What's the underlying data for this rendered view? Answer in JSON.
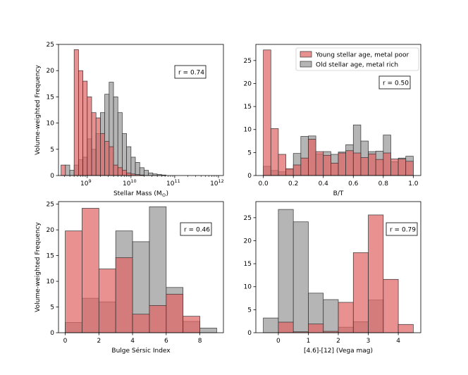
{
  "colors": {
    "young": "#e06666",
    "old": "#888888",
    "edge": "#333333",
    "overlap": "#a06a6a"
  },
  "legend": {
    "young_label": "Young stellar age, metal poor",
    "old_label": "Old stellar age, metal rich"
  },
  "shared_ylabel": "Volume-weighted Frequency",
  "chart_data": [
    {
      "type": "bar",
      "title": "",
      "xlabel": "Stellar Mass (M⊙)",
      "ylabel": "Volume-weighted Frequency",
      "xscale": "log",
      "xlim": [
        220000000.0,
        1300000000000.0
      ],
      "ylim": [
        0,
        25
      ],
      "yticks": [
        0,
        5,
        10,
        15,
        20,
        25
      ],
      "xticks": [
        {
          "v": 1000000000.0,
          "label": "10",
          "exp": "9"
        },
        {
          "v": 10000000000.0,
          "label": "10",
          "exp": "10"
        },
        {
          "v": 100000000000.0,
          "label": "10",
          "exp": "11"
        },
        {
          "v": 1000000000000.0,
          "label": "10",
          "exp": "12"
        }
      ],
      "bin_edges_log10": [
        8.4,
        8.5,
        8.6,
        8.7,
        8.8,
        8.9,
        9.0,
        9.1,
        9.2,
        9.3,
        9.4,
        9.5,
        9.6,
        9.7,
        9.8,
        9.9,
        10.0,
        10.1,
        10.2,
        10.3,
        10.4,
        10.5,
        10.6,
        10.7,
        10.8,
        10.9,
        11.0,
        11.1,
        11.2,
        11.3,
        11.4,
        11.5,
        11.6,
        11.7,
        11.8,
        11.9,
        12.0
      ],
      "series": [
        {
          "name": "Young stellar age, metal poor",
          "values": [
            2,
            0,
            0,
            24,
            20,
            18,
            15,
            12,
            11,
            8,
            6.5,
            5.5,
            2,
            1.5,
            1,
            0.5,
            0.3,
            0.2,
            0.1,
            0,
            0,
            0,
            0,
            0,
            0,
            0,
            0,
            0,
            0,
            0,
            0,
            0,
            0,
            0,
            0,
            0
          ]
        },
        {
          "name": "Old stellar age, metal rich",
          "values": [
            0,
            2,
            1,
            2,
            3,
            3.5,
            7,
            5,
            8,
            12,
            15.5,
            17.8,
            15,
            12,
            8,
            5.5,
            3.5,
            2.5,
            1.5,
            1,
            0.5,
            0.3,
            0.2,
            0.1,
            0,
            0,
            0,
            0,
            0,
            0,
            0,
            0,
            0,
            0,
            0,
            0
          ]
        }
      ],
      "annotation": "r = 0.74"
    },
    {
      "type": "bar",
      "title": "",
      "xlabel": "B/T",
      "ylabel": "",
      "xlim": [
        -0.05,
        1.05
      ],
      "ylim": [
        0,
        28.5
      ],
      "yticks": [
        0,
        5,
        10,
        15,
        20,
        25
      ],
      "xticks": [
        0.0,
        0.2,
        0.4,
        0.6,
        0.8,
        1.0
      ],
      "bin_edges": [
        0.0,
        0.05,
        0.1,
        0.15,
        0.2,
        0.25,
        0.3,
        0.35,
        0.4,
        0.45,
        0.5,
        0.55,
        0.6,
        0.65,
        0.7,
        0.75,
        0.8,
        0.85,
        0.9,
        0.95,
        1.0
      ],
      "series": [
        {
          "name": "Young stellar age, metal poor",
          "values": [
            27.3,
            10.2,
            4.6,
            1.5,
            2.3,
            3.8,
            7.9,
            5.2,
            4.4,
            2.7,
            4.9,
            5.4,
            4.9,
            3.9,
            4.7,
            3.5,
            4.9,
            3.6,
            3.6,
            3.1
          ]
        },
        {
          "name": "Old stellar age, metal rich",
          "values": [
            2.0,
            1.1,
            0.8,
            1.3,
            4.8,
            8.5,
            8.6,
            4.7,
            5.2,
            4.6,
            5.1,
            6.7,
            11.0,
            7.5,
            5.2,
            5.3,
            8.8,
            3.0,
            3.8,
            4.2
          ]
        }
      ],
      "annotation": "r = 0.50"
    },
    {
      "type": "bar",
      "title": "",
      "xlabel": "Bulge Sérsic Index",
      "ylabel": "Volume-weighted Frequency",
      "xlim": [
        -0.4,
        9.4
      ],
      "ylim": [
        0,
        25.5
      ],
      "yticks": [
        0,
        5,
        10,
        15,
        20,
        25
      ],
      "xticks": [
        0,
        2,
        4,
        6,
        8
      ],
      "bin_edges": [
        0,
        1,
        2,
        3,
        4,
        5,
        6,
        7,
        8,
        9
      ],
      "series": [
        {
          "name": "Young stellar age, metal poor",
          "values": [
            19.8,
            24.2,
            12.4,
            14.6,
            3.6,
            5.3,
            7.5,
            3.2,
            0
          ]
        },
        {
          "name": "Old stellar age, metal rich",
          "values": [
            2.0,
            6.7,
            6.0,
            19.8,
            17.7,
            24.5,
            8.8,
            2.2,
            0.9
          ]
        }
      ],
      "annotation": "r = 0.46"
    },
    {
      "type": "bar",
      "title": "",
      "xlabel": "[4.6]-[12] (Vega mag)",
      "ylabel": "",
      "xlim": [
        -0.75,
        4.75
      ],
      "ylim": [
        0,
        28.5
      ],
      "yticks": [
        0,
        5,
        10,
        15,
        20,
        25
      ],
      "xticks": [
        0,
        1,
        2,
        3,
        4
      ],
      "bin_edges": [
        -0.5,
        0,
        0.5,
        1.0,
        1.5,
        2.0,
        2.5,
        3.0,
        3.5,
        4.0,
        4.5
      ],
      "series": [
        {
          "name": "Young stellar age, metal poor",
          "values": [
            0,
            2.3,
            0.2,
            1.9,
            0.3,
            6.6,
            17.4,
            25.6,
            11.6,
            1.8
          ]
        },
        {
          "name": "Old stellar age, metal rich",
          "values": [
            3.2,
            26.8,
            24.1,
            8.6,
            7.2,
            1.2,
            2.4,
            7.1,
            0,
            0
          ]
        }
      ],
      "annotation": "r = 0.79"
    }
  ]
}
